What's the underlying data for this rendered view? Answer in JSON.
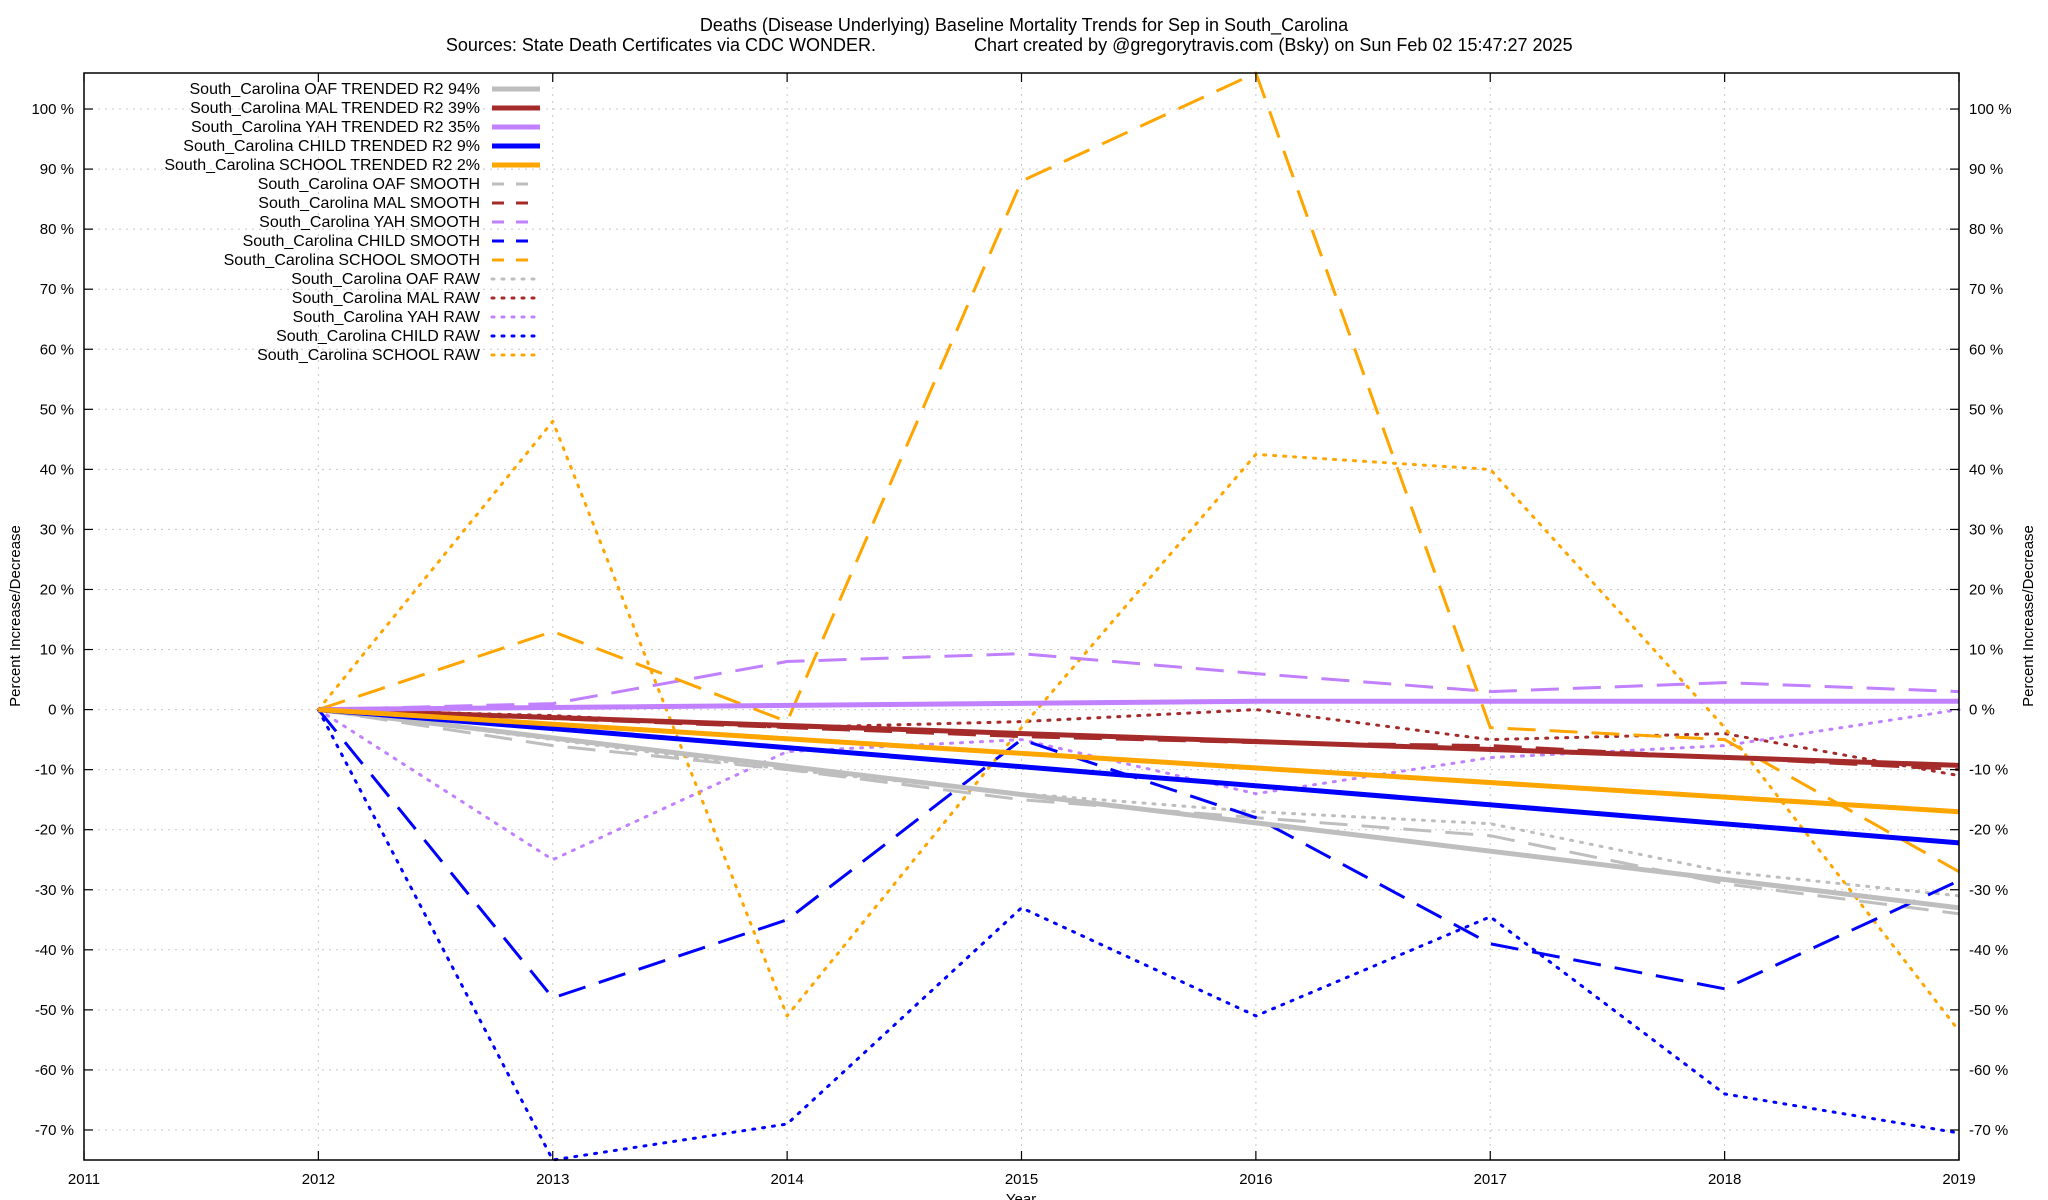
{
  "chart_data": {
    "type": "line",
    "title": "Deaths (Disease Underlying)  Baseline Mortality Trends for Sep in South_Carolina",
    "subtitle_left": "Sources: State Death Certificates via CDC WONDER.",
    "subtitle_right": "Chart created by @gregorytravis.com (Bsky) on Sun Feb 02 15:47:27 2025",
    "xlabel": "Year",
    "ylabel": "Percent Increase/Decrease",
    "ylabel_right": "Percent Increase/Decrease",
    "xlim": [
      2011,
      2019
    ],
    "ylim": [
      -75,
      106
    ],
    "x_ticks": [
      2011,
      2012,
      2013,
      2014,
      2015,
      2016,
      2017,
      2018,
      2019
    ],
    "x_tick_labels": [
      "2011",
      "2012",
      "2013",
      "2014",
      "2015",
      "2016",
      "2017",
      "2018",
      "2019"
    ],
    "y_ticks": [
      100,
      90,
      80,
      70,
      60,
      50,
      40,
      30,
      20,
      10,
      0,
      -10,
      -20,
      -30,
      -40,
      -50,
      -60,
      -70
    ],
    "y_tick_labels": [
      "100 %",
      "90 %",
      "80 %",
      "70 %",
      "60 %",
      "50 %",
      "40 %",
      "30 %",
      "20 %",
      "10 %",
      "0 %",
      "-10 %",
      "-20 %",
      "-30 %",
      "-40 %",
      "-50 %",
      "-60 %",
      "-70 %"
    ],
    "grid": true,
    "legend_position": "top-left",
    "series": [
      {
        "name": "South_Carolina OAF TRENDED R2  94%",
        "style": "solid",
        "color": "#bebebe",
        "width": 5,
        "x": [
          2012,
          2019
        ],
        "y": [
          0,
          -33
        ]
      },
      {
        "name": "South_Carolina MAL TRENDED R2  39%",
        "style": "solid",
        "color": "#a52a2a",
        "width": 5,
        "x": [
          2012,
          2019
        ],
        "y": [
          0,
          -9.3
        ]
      },
      {
        "name": "South_Carolina YAH TRENDED R2  35%",
        "style": "solid",
        "color": "#c080ff",
        "width": 5,
        "x": [
          2012,
          2016,
          2019
        ],
        "y": [
          0,
          1.4,
          1.4
        ]
      },
      {
        "name": "South_Carolina CHILD TRENDED R2   9%",
        "style": "solid",
        "color": "#0000ff",
        "width": 5,
        "x": [
          2012,
          2019
        ],
        "y": [
          0,
          -22.2
        ]
      },
      {
        "name": "South_Carolina SCHOOL TRENDED R2   2%",
        "style": "solid",
        "color": "#ffa500",
        "width": 5,
        "x": [
          2012,
          2019
        ],
        "y": [
          0,
          -17
        ]
      },
      {
        "name": "South_Carolina OAF SMOOTH",
        "style": "dashed",
        "color": "#bebebe",
        "width": 3,
        "x": [
          2012,
          2013,
          2014,
          2015,
          2016,
          2017,
          2018,
          2019
        ],
        "y": [
          0,
          -6,
          -10,
          -15,
          -18,
          -21,
          -29,
          -34
        ]
      },
      {
        "name": "South_Carolina MAL SMOOTH",
        "style": "dashed",
        "color": "#a52a2a",
        "width": 3,
        "x": [
          2012,
          2013,
          2014,
          2015,
          2016,
          2017,
          2018,
          2019
        ],
        "y": [
          0,
          -1.5,
          -3,
          -4.5,
          -5.5,
          -6,
          -8,
          -10
        ]
      },
      {
        "name": "South_Carolina YAH SMOOTH",
        "style": "dashed",
        "color": "#c080ff",
        "width": 3,
        "x": [
          2012,
          2013,
          2014,
          2015,
          2016,
          2017,
          2018,
          2019
        ],
        "y": [
          0,
          1,
          8,
          9.3,
          6,
          3,
          4.5,
          3
        ]
      },
      {
        "name": "South_Carolina CHILD SMOOTH",
        "style": "dashed",
        "color": "#0000ff",
        "width": 3,
        "x": [
          2012,
          2013,
          2014,
          2015,
          2016,
          2017,
          2018,
          2019
        ],
        "y": [
          0,
          -48,
          -35,
          -5,
          -18,
          -39,
          -46.5,
          -28.5
        ]
      },
      {
        "name": "South_Carolina SCHOOL SMOOTH",
        "style": "dashed",
        "color": "#ffa500",
        "width": 3,
        "x": [
          2012,
          2013,
          2014,
          2015,
          2016,
          2017,
          2018,
          2019
        ],
        "y": [
          0,
          13,
          -2,
          88,
          106,
          -3,
          -5,
          -27
        ]
      },
      {
        "name": "South_Carolina OAF RAW",
        "style": "dotted",
        "color": "#bebebe",
        "width": 3,
        "x": [
          2012,
          2013,
          2014,
          2015,
          2016,
          2017,
          2018,
          2019
        ],
        "y": [
          0,
          -5,
          -10,
          -14,
          -17,
          -19,
          -27,
          -31
        ]
      },
      {
        "name": "South_Carolina MAL RAW",
        "style": "dotted",
        "color": "#a52a2a",
        "width": 3,
        "x": [
          2012,
          2013,
          2014,
          2015,
          2016,
          2017,
          2018,
          2019
        ],
        "y": [
          0,
          -1,
          -3,
          -2,
          0,
          -5,
          -4,
          -11
        ]
      },
      {
        "name": "South_Carolina YAH RAW",
        "style": "dotted",
        "color": "#c080ff",
        "width": 3,
        "x": [
          2012,
          2013,
          2014,
          2015,
          2016,
          2017,
          2018,
          2019
        ],
        "y": [
          0,
          -25,
          -7,
          -5,
          -14,
          -8,
          -6,
          0
        ]
      },
      {
        "name": "South_Carolina CHILD RAW",
        "style": "dotted",
        "color": "#0000ff",
        "width": 3,
        "x": [
          2012,
          2013,
          2014,
          2015,
          2016,
          2017,
          2018,
          2019
        ],
        "y": [
          0,
          -75,
          -69,
          -33,
          -51,
          -34.5,
          -64,
          -70.5
        ]
      },
      {
        "name": "South_Carolina SCHOOL RAW",
        "style": "dotted",
        "color": "#ffa500",
        "width": 3,
        "x": [
          2012,
          2013,
          2014,
          2015,
          2016,
          2017,
          2018,
          2019
        ],
        "y": [
          0,
          48,
          -51,
          -3,
          42.5,
          40,
          -3,
          -53.5
        ]
      }
    ]
  }
}
